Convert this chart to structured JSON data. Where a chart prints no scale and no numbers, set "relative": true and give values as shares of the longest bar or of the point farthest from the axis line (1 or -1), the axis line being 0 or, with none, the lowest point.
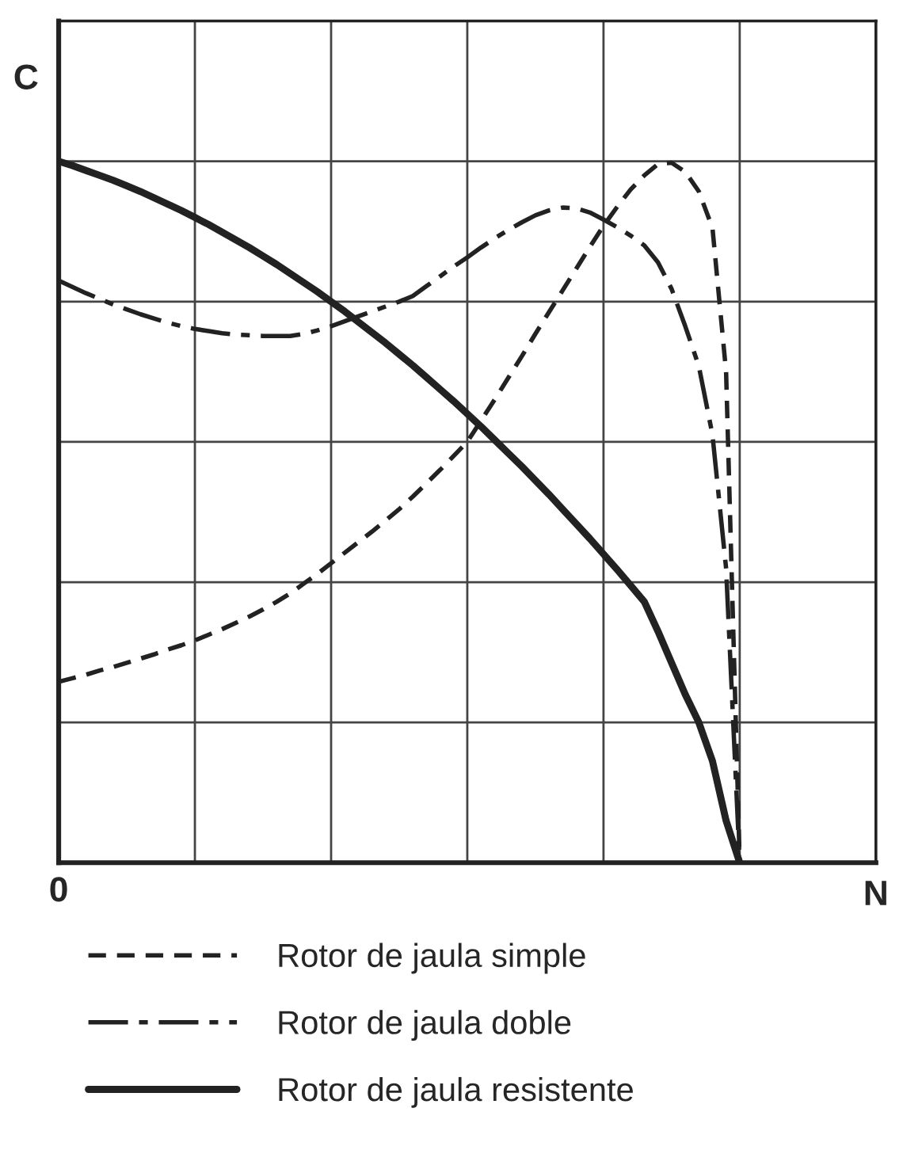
{
  "chart_data": {
    "type": "line",
    "relative": true,
    "xlabel": "N",
    "ylabel": "C",
    "annotations": [
      "0"
    ],
    "categories": [
      null,
      null,
      null,
      null,
      null,
      null,
      null,
      null,
      null,
      null,
      null,
      null,
      null,
      null,
      null,
      null,
      null,
      null,
      null,
      null,
      null,
      null,
      null,
      null,
      null,
      null,
      null,
      null,
      null,
      null,
      null,
      null,
      null,
      null,
      null,
      null,
      null,
      null,
      null,
      null,
      null,
      null,
      null,
      null,
      null,
      null,
      null,
      null,
      null,
      null,
      null,
      null,
      null,
      null,
      null,
      null,
      null,
      null,
      null,
      null,
      null
    ],
    "grid": true,
    "legend": "bottom",
    "marker": "none",
    "series": [
      {
        "name": "Rotor de jaula simple",
        "color": "#222222",
        "line_style": "dashed",
        "values": [
          0.258,
          0.263,
          0.268,
          0.274,
          0.279,
          0.285,
          0.291,
          0.297,
          0.304,
          0.31,
          0.317,
          0.325,
          0.333,
          0.342,
          0.351,
          0.361,
          0.372,
          0.384,
          0.398,
          0.412,
          0.427,
          0.442,
          0.457,
          0.472,
          0.488,
          0.504,
          0.522,
          0.541,
          0.56,
          0.58,
          0.6,
          0.63,
          0.66,
          0.691,
          0.722,
          0.754,
          0.785,
          0.816,
          0.847,
          0.878,
          0.908,
          0.935,
          0.96,
          0.98,
          0.996,
          0.998,
          0.985,
          0.957,
          0.905,
          0.7,
          0,
          null,
          null,
          null,
          null,
          null,
          null,
          null,
          null,
          null,
          null
        ]
      },
      {
        "name": "Rotor de jaula doble",
        "color": "#222222",
        "line_style": "dashdot",
        "values": [
          0.83,
          0.821,
          0.812,
          0.804,
          0.796,
          0.789,
          0.782,
          0.776,
          0.77,
          0.765,
          0.761,
          0.758,
          0.755,
          0.753,
          0.752,
          0.751,
          0.751,
          0.751,
          0.754,
          0.759,
          0.765,
          0.772,
          0.779,
          0.786,
          0.793,
          0.8,
          0.808,
          0.822,
          0.836,
          0.85,
          0.863,
          0.877,
          0.89,
          0.902,
          0.913,
          0.923,
          0.93,
          0.934,
          0.933,
          0.927,
          0.917,
          0.906,
          0.894,
          0.88,
          0.856,
          0.818,
          0.765,
          0.708,
          0.61,
          0.42,
          0,
          null,
          null,
          null,
          null,
          null,
          null,
          null,
          null,
          null,
          null
        ]
      },
      {
        "name": "Rotor de jaula resistente",
        "color": "#222222",
        "line_style": "solid",
        "values": [
          1.0,
          0.994,
          0.987,
          0.98,
          0.973,
          0.965,
          0.957,
          0.948,
          0.939,
          0.93,
          0.92,
          0.91,
          0.899,
          0.888,
          0.877,
          0.865,
          0.853,
          0.84,
          0.827,
          0.814,
          0.8,
          0.786,
          0.771,
          0.756,
          0.741,
          0.725,
          0.709,
          0.692,
          0.675,
          0.658,
          0.64,
          0.622,
          0.603,
          0.584,
          0.565,
          0.545,
          0.525,
          0.504,
          0.483,
          0.462,
          0.44,
          0.418,
          0.395,
          0.372,
          0.33,
          0.285,
          0.24,
          0.2,
          0.145,
          0.06,
          0,
          null,
          null,
          null,
          null,
          null,
          null,
          null,
          null,
          null,
          null
        ]
      }
    ]
  }
}
